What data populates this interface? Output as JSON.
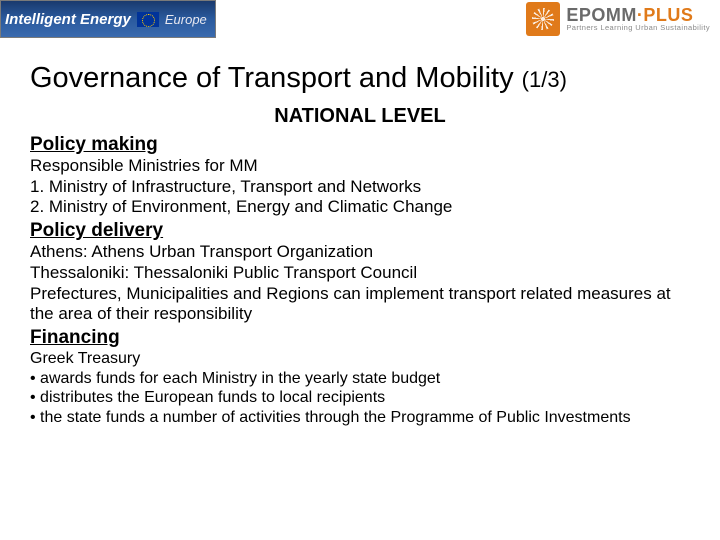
{
  "header": {
    "left_logo_text": "Intelligent Energy",
    "left_logo_region": "Europe",
    "right_logo_title": "EPOMM",
    "right_logo_suffix": "·PLUS",
    "right_logo_tagline": "Partners Learning Urban Sustainability"
  },
  "title": {
    "main": "Governance of Transport and Mobility",
    "counter": "(1/3)"
  },
  "subtitle": "NATIONAL LEVEL",
  "sections": {
    "policy_making": {
      "heading": "Policy making",
      "lines": [
        "Responsible Ministries for MM",
        "1. Ministry of Infrastructure, Transport and Networks",
        "2. Ministry of Environment, Energy and Climatic Change"
      ]
    },
    "policy_delivery": {
      "heading": "Policy delivery",
      "lines": [
        "Athens: Athens Urban Transport  Organization",
        "Thessaloniki: Thessaloniki Public Transport Council",
        "Prefectures, Municipalities and Regions can implement transport related measures at the area of their responsibility"
      ]
    },
    "financing": {
      "heading": "Financing",
      "lines": [
        "Greek Treasury",
        "• awards funds for each Ministry in the yearly state budget",
        "• distributes the European funds to local recipients",
        "• the state funds a number of activities through the Programme of Public Investments"
      ]
    }
  }
}
